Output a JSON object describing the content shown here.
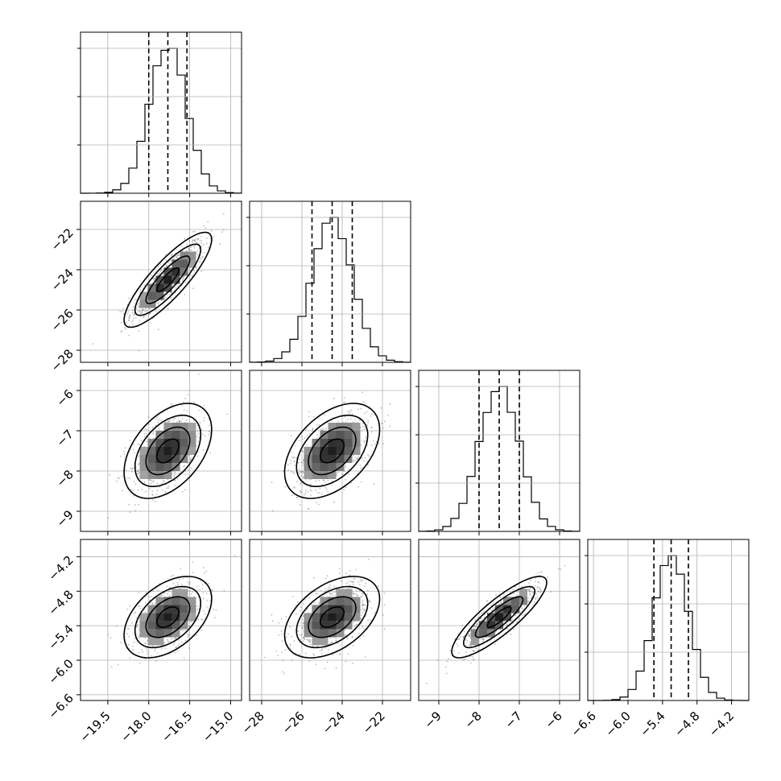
{
  "chart_data": {
    "type": "corner",
    "parameters": [
      {
        "mean": -17.3,
        "sd": 0.68,
        "q16": -18.0,
        "q50": -17.3,
        "q84": -16.6,
        "range": [
          -20.5,
          -14.6
        ],
        "ticks": [
          {
            "v": -19.5,
            "label": "−19.5"
          },
          {
            "v": -18.0,
            "label": "−18.0"
          },
          {
            "v": -16.5,
            "label": "−16.5"
          },
          {
            "v": -15.0,
            "label": "−15.0"
          }
        ]
      },
      {
        "mean": -24.5,
        "sd": 1.0,
        "q16": -25.5,
        "q50": -24.5,
        "q84": -23.5,
        "range": [
          -28.6,
          -20.6
        ],
        "ticks": [
          {
            "v": -28,
            "label": "−28"
          },
          {
            "v": -26,
            "label": "−26"
          },
          {
            "v": -24,
            "label": "−24"
          },
          {
            "v": -22,
            "label": "−22"
          }
        ]
      },
      {
        "mean": -7.5,
        "sd": 0.5,
        "q16": -8.0,
        "q50": -7.5,
        "q84": -7.0,
        "range": [
          -9.5,
          -5.5
        ],
        "ticks": [
          {
            "v": -9,
            "label": "−9"
          },
          {
            "v": -8,
            "label": "−8"
          },
          {
            "v": -7,
            "label": "−7"
          },
          {
            "v": -6,
            "label": "−6"
          }
        ]
      },
      {
        "mean": -5.25,
        "sd": 0.3,
        "q16": -5.55,
        "q50": -5.25,
        "q84": -4.95,
        "range": [
          -6.7,
          -3.9
        ],
        "ticks": [
          {
            "v": -6.6,
            "label": "−6.6"
          },
          {
            "v": -6.0,
            "label": "−6.0"
          },
          {
            "v": -5.4,
            "label": "−5.4"
          },
          {
            "v": -4.8,
            "label": "−4.8"
          },
          {
            "v": -4.2,
            "label": "−4.2"
          }
        ]
      }
    ],
    "correlations": [
      [
        1,
        0.85,
        0.45,
        0.45
      ],
      [
        0.85,
        1,
        0.45,
        0.45
      ],
      [
        0.45,
        0.45,
        1,
        0.85
      ],
      [
        0.45,
        0.45,
        0.85,
        1
      ]
    ],
    "quantiles": [
      0.16,
      0.5,
      0.84
    ],
    "contour_levels_sigma": [
      0.5,
      1.0,
      1.5,
      2.0
    ],
    "histogram_bins": 20,
    "xlabels": [
      "",
      "",
      "",
      ""
    ],
    "ylabels": [
      "",
      "",
      "",
      ""
    ],
    "grid": true,
    "colors": {
      "points": "#444444",
      "line": "#000000",
      "grid": "#b0b0b0"
    }
  }
}
